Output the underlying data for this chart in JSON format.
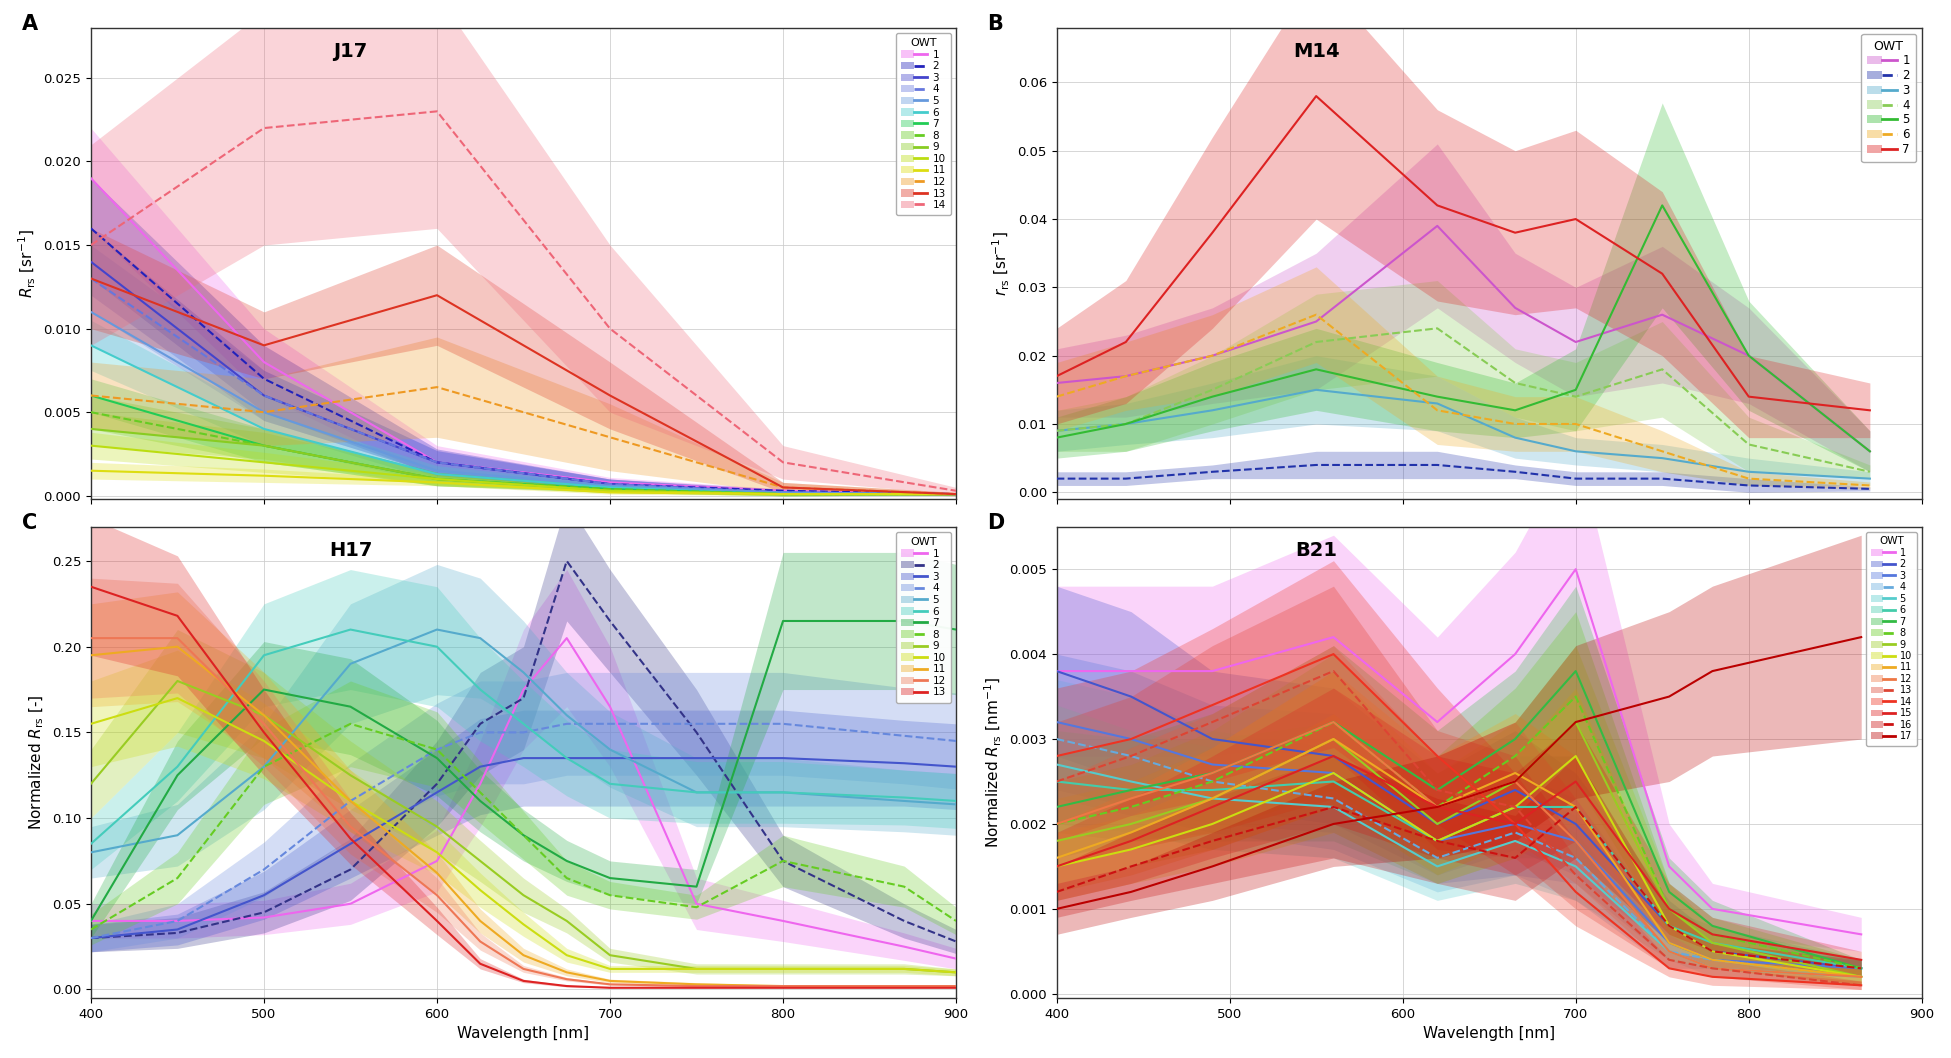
{
  "title_A": "J17",
  "title_B": "M14",
  "title_C": "H17",
  "title_D": "B21",
  "label_A": "A",
  "label_B": "B",
  "label_C": "C",
  "label_D": "D",
  "ylabel_A": "$R_\\mathrm{rs}$ [sr$^{-1}$]",
  "ylabel_B": "$r_\\mathrm{rs}$ [sr$^{-1}$]",
  "ylabel_C": "Normalized $R_\\mathrm{rs}$ [-]",
  "ylabel_D": "Normalized $R_\\mathrm{rs}$ [nm$^{-1}$]",
  "xlabel": "Wavelength [nm]",
  "owt_colors_j17": [
    "#ee66ee",
    "#2222bb",
    "#4444cc",
    "#6677dd",
    "#6699dd",
    "#44cccc",
    "#22cc55",
    "#66cc22",
    "#88cc22",
    "#bbdd11",
    "#dddd11",
    "#ee9922",
    "#dd3322",
    "#ee6677"
  ],
  "owt_dashed_j17": [
    false,
    true,
    false,
    true,
    false,
    false,
    false,
    true,
    false,
    false,
    false,
    true,
    false,
    true
  ],
  "owt_colors_m14": [
    "#cc55cc",
    "#2233aa",
    "#55aacc",
    "#88cc55",
    "#33bb33",
    "#eeaa22",
    "#dd2222"
  ],
  "owt_dashed_m14": [
    false,
    true,
    false,
    true,
    false,
    true,
    false
  ],
  "owt_colors_h17": [
    "#ee66ee",
    "#333388",
    "#4455cc",
    "#6688dd",
    "#55aacc",
    "#44ccbb",
    "#22aa44",
    "#66cc22",
    "#99cc22",
    "#ccdd11",
    "#eeaa22",
    "#ee7755",
    "#dd2222"
  ],
  "owt_dashed_h17": [
    false,
    true,
    false,
    true,
    false,
    false,
    false,
    true,
    false,
    false,
    false,
    false,
    false
  ],
  "owt_colors_b21": [
    "#ee66ee",
    "#4455cc",
    "#5577dd",
    "#66aadd",
    "#55cccc",
    "#44ccaa",
    "#33bb44",
    "#66cc22",
    "#99cc22",
    "#ccdd11",
    "#eeaa22",
    "#ee7744",
    "#dd4433",
    "#ee3322",
    "#dd2222",
    "#cc1111",
    "#bb0000"
  ],
  "owt_dashed_b21": [
    false,
    false,
    false,
    true,
    false,
    false,
    false,
    true,
    false,
    false,
    false,
    false,
    true,
    false,
    false,
    true,
    false
  ]
}
